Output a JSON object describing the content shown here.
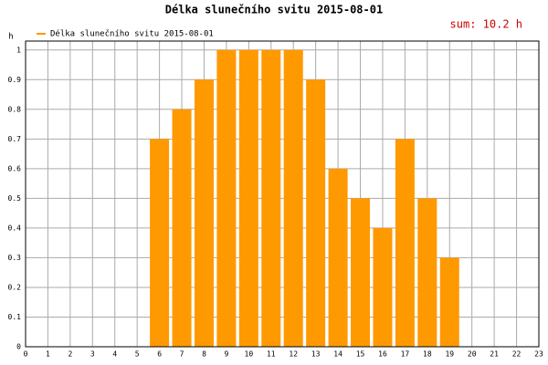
{
  "chart_data": {
    "type": "bar",
    "title": "Délka slunečního svitu 2015-08-01",
    "legend": "Délka slunečního svitu 2015-08-01",
    "annotation": "sum: 10.2 h",
    "y_label": "h",
    "color": "#ff9900",
    "x": [
      6,
      7,
      8,
      9,
      10,
      11,
      12,
      13,
      14,
      15,
      16,
      17,
      18,
      19
    ],
    "values": [
      0.7,
      0.8,
      0.9,
      1,
      1,
      1,
      1,
      0.9,
      0.6,
      0.5,
      0.4,
      0.7,
      0.5,
      0.3
    ],
    "xlim": [
      0,
      23
    ],
    "xticks": [
      0,
      1,
      2,
      3,
      4,
      5,
      6,
      7,
      8,
      9,
      10,
      11,
      12,
      13,
      14,
      15,
      16,
      17,
      18,
      19,
      20,
      21,
      22,
      23
    ],
    "ylim": [
      0,
      1.03
    ],
    "yticks": [
      0,
      0.1,
      0.2,
      0.3,
      0.4,
      0.5,
      0.6,
      0.7,
      0.8,
      0.9,
      1
    ],
    "grid": true
  }
}
